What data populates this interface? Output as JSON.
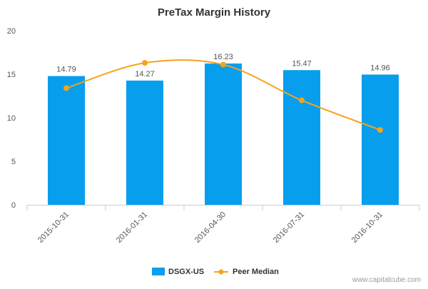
{
  "chart_data": {
    "type": "bar",
    "title": "PreTax Margin History",
    "categories": [
      "2015-10-31",
      "2016-01-31",
      "2016-04-30",
      "2016-07-31",
      "2016-10-31"
    ],
    "series": [
      {
        "name": "DSGX-US",
        "type": "bar",
        "color": "#079fed",
        "values": [
          14.79,
          14.27,
          16.23,
          15.47,
          14.96
        ],
        "data_labels": [
          "14.79",
          "14.27",
          "16.23",
          "15.47",
          "14.96"
        ]
      },
      {
        "name": "Peer Median",
        "type": "line",
        "smooth": true,
        "color": "#f7a21b",
        "values": [
          13.4,
          16.3,
          16.1,
          12.0,
          8.6
        ]
      }
    ],
    "ylim": [
      0,
      20
    ],
    "yticks": [
      0,
      5,
      10,
      15,
      20
    ],
    "ytick_labels": [
      "0",
      "5",
      "10",
      "15",
      "20"
    ],
    "grid": false,
    "legend_position": "bottom-center"
  },
  "watermark": "www.capitalcube.com"
}
